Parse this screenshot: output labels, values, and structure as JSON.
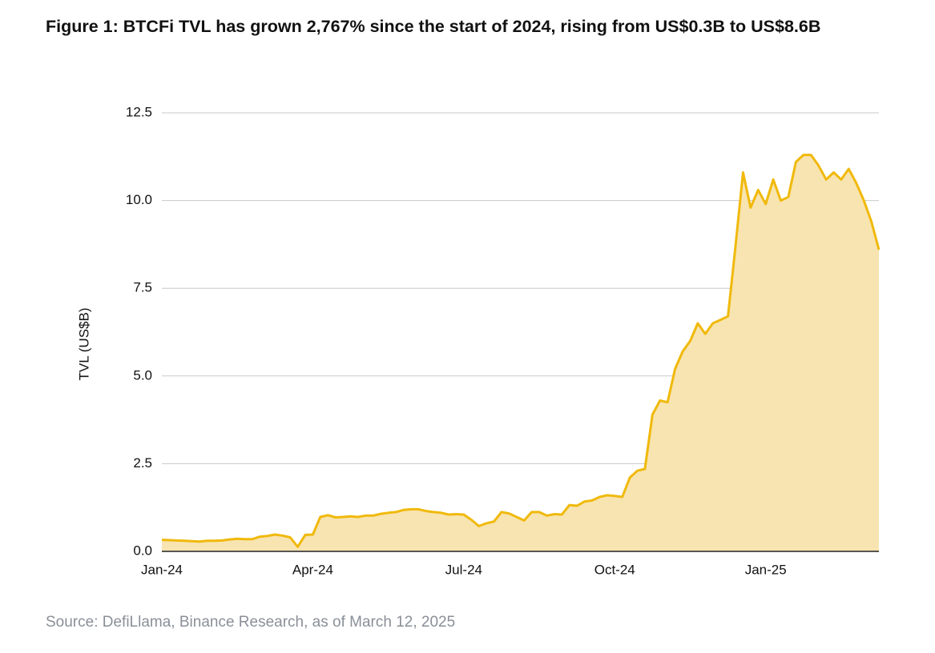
{
  "chart_data": {
    "type": "area",
    "title": "Figure 1: BTCFi TVL has grown 2,767% since the start of 2024, rising from US$0.3B to US$8.6B",
    "ylabel": "TVL (US$B)",
    "source": "Source: DefiLlama, Binance Research, as of March 12, 2025",
    "categories": [
      "Jan-24",
      null,
      null,
      null,
      null,
      null,
      null,
      null,
      null,
      null,
      null,
      null,
      null,
      null,
      null,
      null,
      null,
      null,
      null,
      null,
      "Apr-24",
      null,
      null,
      null,
      null,
      null,
      null,
      null,
      null,
      null,
      null,
      null,
      null,
      null,
      null,
      null,
      null,
      null,
      null,
      null,
      "Jul-24",
      null,
      null,
      null,
      null,
      null,
      null,
      null,
      null,
      null,
      null,
      null,
      null,
      null,
      null,
      null,
      null,
      null,
      null,
      null,
      "Oct-24",
      null,
      null,
      null,
      null,
      null,
      null,
      null,
      null,
      null,
      null,
      null,
      null,
      null,
      null,
      null,
      null,
      null,
      null,
      null,
      "Jan-25",
      null,
      null,
      null,
      null,
      null,
      null,
      null,
      null,
      null,
      null,
      null,
      null,
      null,
      null,
      null
    ],
    "values": [
      0.33,
      0.32,
      0.31,
      0.3,
      0.29,
      0.28,
      0.3,
      0.3,
      0.31,
      0.34,
      0.36,
      0.35,
      0.35,
      0.42,
      0.44,
      0.48,
      0.45,
      0.4,
      0.13,
      0.47,
      0.48,
      0.98,
      1.03,
      0.97,
      0.98,
      1.0,
      0.98,
      1.02,
      1.02,
      1.07,
      1.1,
      1.12,
      1.18,
      1.2,
      1.2,
      1.15,
      1.12,
      1.1,
      1.05,
      1.06,
      1.05,
      0.9,
      0.72,
      0.8,
      0.85,
      1.12,
      1.08,
      0.98,
      0.88,
      1.12,
      1.12,
      1.02,
      1.06,
      1.05,
      1.32,
      1.3,
      1.42,
      1.45,
      1.55,
      1.6,
      1.58,
      1.55,
      2.1,
      2.3,
      2.35,
      3.9,
      4.3,
      4.25,
      5.2,
      5.7,
      6.0,
      6.5,
      6.2,
      6.5,
      6.6,
      6.7,
      8.7,
      10.8,
      9.8,
      10.3,
      9.9,
      10.6,
      10.0,
      10.1,
      11.1,
      11.3,
      11.3,
      11.0,
      10.6,
      10.8,
      10.6,
      10.9,
      10.5,
      10.0,
      9.4,
      8.6
    ],
    "color": "#f0b90b",
    "fill": "#f8e4b0",
    "ylim": [
      0,
      12.5
    ],
    "yticks": [
      {
        "value": 0,
        "label": "0.0"
      },
      2.5,
      {
        "value": 5,
        "label": "5.0"
      },
      7.5,
      {
        "value": 10,
        "label": "10.0"
      },
      12.5
    ],
    "grid": true
  }
}
